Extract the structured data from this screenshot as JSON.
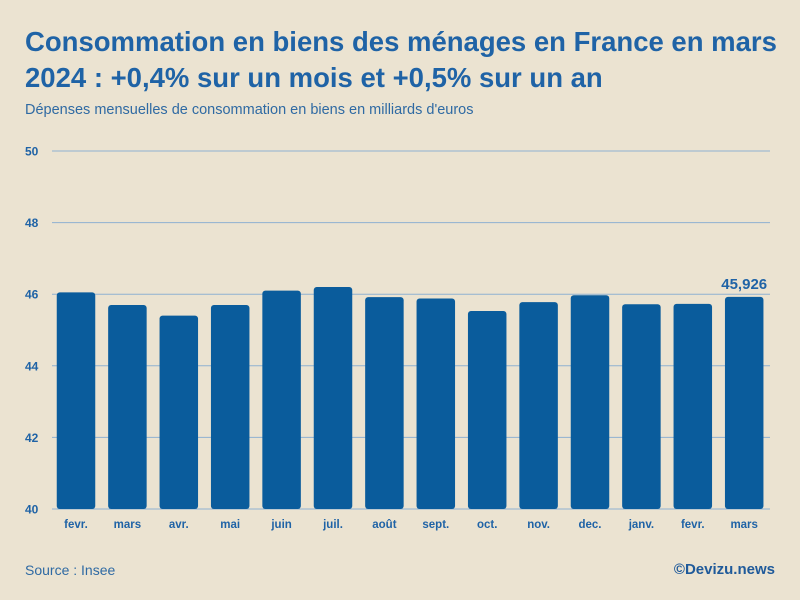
{
  "header": {
    "title": "Consommation en biens des ménages en France en mars 2024 : +0,4% sur un mois et +0,5% sur un an",
    "subtitle": "Dépenses mensuelles de consommation en biens en milliards d'euros"
  },
  "footer": {
    "source": "Source : Insee",
    "brand": "©Devizu.news"
  },
  "colors": {
    "background": "#ebe3d1",
    "bar": "#0a5c9c",
    "text": "#1f63a6",
    "grid": "#8fb1d1"
  },
  "chart_data": {
    "type": "bar",
    "title": "Consommation en biens des ménages en France en mars 2024 : +0,4% sur un mois et +0,5% sur un an",
    "ylabel": "Dépenses mensuelles de consommation en biens en milliards d'euros",
    "xlabel": "",
    "categories": [
      "fevr.",
      "mars",
      "avr.",
      "mai",
      "juin",
      "juil.",
      "août",
      "sept.",
      "oct.",
      "nov.",
      "dec.",
      "janv.",
      "fevr.",
      "mars"
    ],
    "values": [
      46.05,
      45.7,
      45.4,
      45.7,
      46.1,
      46.2,
      45.92,
      45.88,
      45.53,
      45.78,
      45.97,
      45.72,
      45.73,
      45.926
    ],
    "ylim": [
      40,
      50
    ],
    "yticks": [
      40,
      42,
      44,
      46,
      48,
      50
    ],
    "grid": true,
    "annotation": {
      "index": 13,
      "text": "45,926"
    }
  }
}
